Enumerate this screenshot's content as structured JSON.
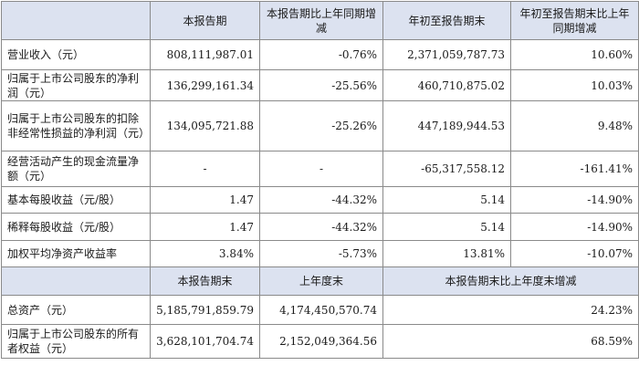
{
  "headers1": [
    "",
    "本报告期",
    "本报告期比上年同期增减",
    "年初至报告期末",
    "年初至报告期末比上年同期增减"
  ],
  "rows1": [
    {
      "label": "营业收入（元）",
      "current": "808,111,987.01",
      "current_change": "-0.76%",
      "ytd": "2,371,059,787.73",
      "ytd_change": "10.60%"
    },
    {
      "label": "归属于上市公司股东的净利润（元）",
      "current": "136,299,161.34",
      "current_change": "-25.56%",
      "ytd": "460,710,875.02",
      "ytd_change": "10.03%"
    },
    {
      "label": "归属于上市公司股东的扣除非经常性损益的净利润（元）",
      "current": "134,095,721.88",
      "current_change": "-25.26%",
      "ytd": "447,189,944.53",
      "ytd_change": "9.48%"
    },
    {
      "label": "经营活动产生的现金流量净额（元）",
      "current": "-",
      "current_change": "-",
      "ytd": "-65,317,558.12",
      "ytd_change": "-161.41%"
    },
    {
      "label": "基本每股收益（元/股）",
      "current": "1.47",
      "current_change": "-44.32%",
      "ytd": "5.14",
      "ytd_change": "-14.90%"
    },
    {
      "label": "稀释每股收益（元/股）",
      "current": "1.47",
      "current_change": "-44.32%",
      "ytd": "5.14",
      "ytd_change": "-14.90%"
    },
    {
      "label": "加权平均净资产收益率",
      "current": "3.84%",
      "current_change": "-5.73%",
      "ytd": "13.81%",
      "ytd_change": "-10.07%"
    }
  ],
  "headers2": [
    "",
    "本报告期末",
    "上年度末",
    "本报告期末比上年度末增减"
  ],
  "rows2": [
    {
      "label": "总资产（元）",
      "period_end": "5,185,791,859.79",
      "prior_year_end": "4,174,450,570.74",
      "change": "24.23%"
    },
    {
      "label": "归属于上市公司股东的所有者权益（元）",
      "period_end": "3,628,101,704.74",
      "prior_year_end": "2,152,049,364.56",
      "change": "68.59%"
    }
  ]
}
